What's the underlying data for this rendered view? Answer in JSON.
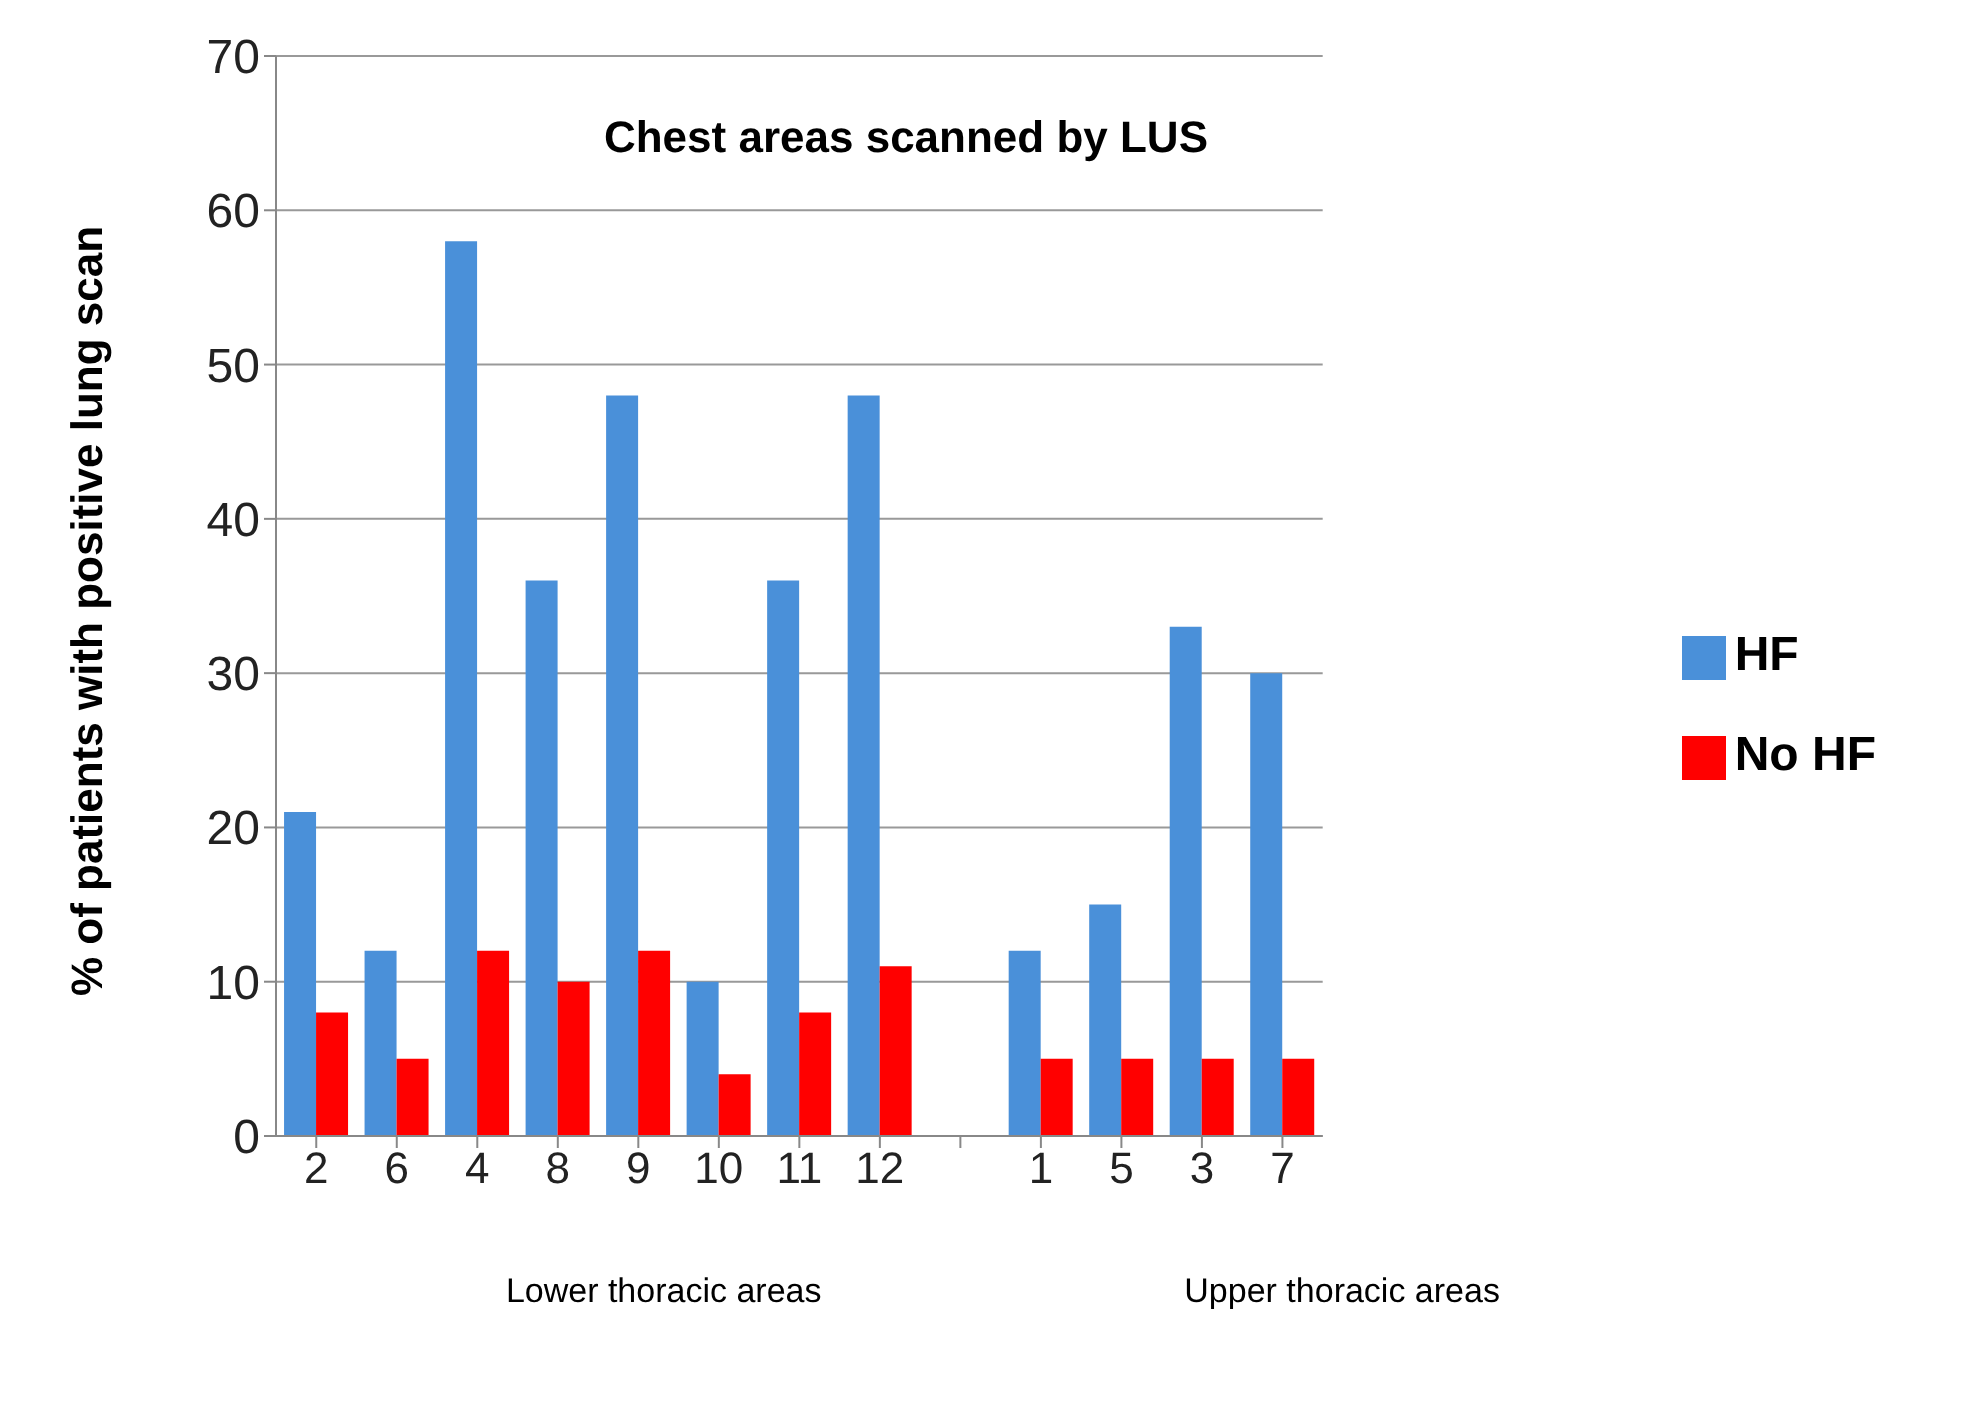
{
  "chart_data": {
    "type": "bar",
    "title": "Chest areas scanned by LUS",
    "ylabel": "% of patients with positive lung scan",
    "categories": [
      "2",
      "6",
      "4",
      "8",
      "9",
      "10",
      "11",
      "12",
      null,
      "1",
      "5",
      "3",
      "7"
    ],
    "series": [
      {
        "name": "HF",
        "color": "#4a90d9",
        "values": [
          21,
          12,
          58,
          36,
          48,
          10,
          36,
          48,
          null,
          12,
          15,
          33,
          30
        ]
      },
      {
        "name": "No HF",
        "color": "#ff0000",
        "values": [
          8,
          5,
          12,
          10,
          12,
          4,
          8,
          11,
          null,
          5,
          5,
          5,
          5
        ]
      }
    ],
    "ylim": [
      0,
      70
    ],
    "yticks": [
      0,
      10,
      20,
      30,
      40,
      50,
      60,
      70
    ],
    "grid": "y",
    "legend": "right",
    "annotations": [
      "Lower thoracic areas",
      "Upper thoracic areas"
    ]
  }
}
